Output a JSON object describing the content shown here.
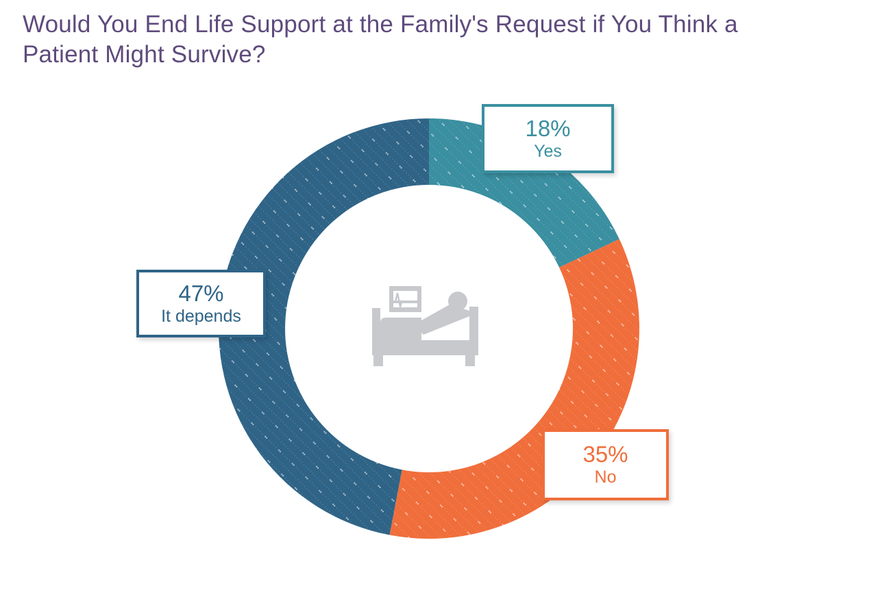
{
  "header": {
    "title_lines": [
      "Would You End Life Support at the Family's Request if You Think a",
      "Patient Might Survive?"
    ],
    "color": "#5e4b7c"
  },
  "chart_data": {
    "type": "pie",
    "variant": "donut",
    "title": "Would You End Life Support at the Family's Request if You Think a Patient Might Survive?",
    "categories": [
      "Yes",
      "No",
      "It depends"
    ],
    "values": [
      18,
      35,
      47
    ],
    "unit": "%",
    "start_angle_deg": 0,
    "direction": "clockwise",
    "segments": [
      {
        "label": "Yes",
        "value": 18,
        "display": "18%",
        "color": "#3a8fa0"
      },
      {
        "label": "No",
        "value": 35,
        "display": "35%",
        "color": "#f06e3b"
      },
      {
        "label": "It depends",
        "value": 47,
        "display": "47%",
        "color": "#2f6487"
      }
    ],
    "legend_position": "callout-boxes-around-ring",
    "texture": "diagonal dotted lines",
    "center_icon": "patient-in-hospital-bed",
    "icon_color": "#c8c9cd",
    "background": "#ffffff"
  }
}
